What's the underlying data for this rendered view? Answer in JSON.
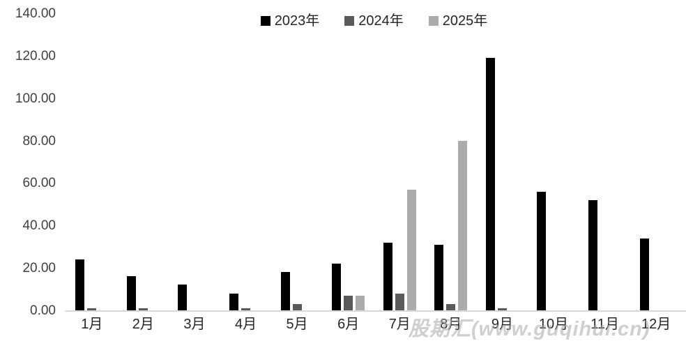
{
  "chart_data": {
    "type": "bar",
    "categories": [
      "1月",
      "2月",
      "3月",
      "4月",
      "5月",
      "6月",
      "7月",
      "8月",
      "9月",
      "10月",
      "11月",
      "12月"
    ],
    "series": [
      {
        "name": "2023年",
        "color": "#000000",
        "values": [
          24,
          16,
          12,
          8,
          18,
          22,
          32,
          31,
          119,
          56,
          52,
          34
        ]
      },
      {
        "name": "2024年",
        "color": "#5a5a5a",
        "values": [
          1,
          1,
          0,
          1,
          3,
          7,
          8,
          3,
          1,
          0,
          0,
          0
        ]
      },
      {
        "name": "2025年",
        "color": "#ababab",
        "values": [
          0,
          0,
          0,
          0,
          0,
          7,
          57,
          80,
          0,
          0,
          0,
          0
        ]
      }
    ],
    "title": "",
    "xlabel": "",
    "ylabel": "",
    "ylim": [
      0,
      140
    ],
    "ytick_step": 20,
    "ytick_labels": [
      "0.00",
      "20.00",
      "40.00",
      "60.00",
      "80.00",
      "100.00",
      "120.00",
      "140.00"
    ],
    "grid": false,
    "legend_position": "top-center"
  },
  "watermark": {
    "text": "股期汇(www.guqihui.cn)"
  },
  "colors": {
    "axis_line": "#d9d9d9",
    "tick_text": "#404040",
    "background": "#ffffff"
  }
}
